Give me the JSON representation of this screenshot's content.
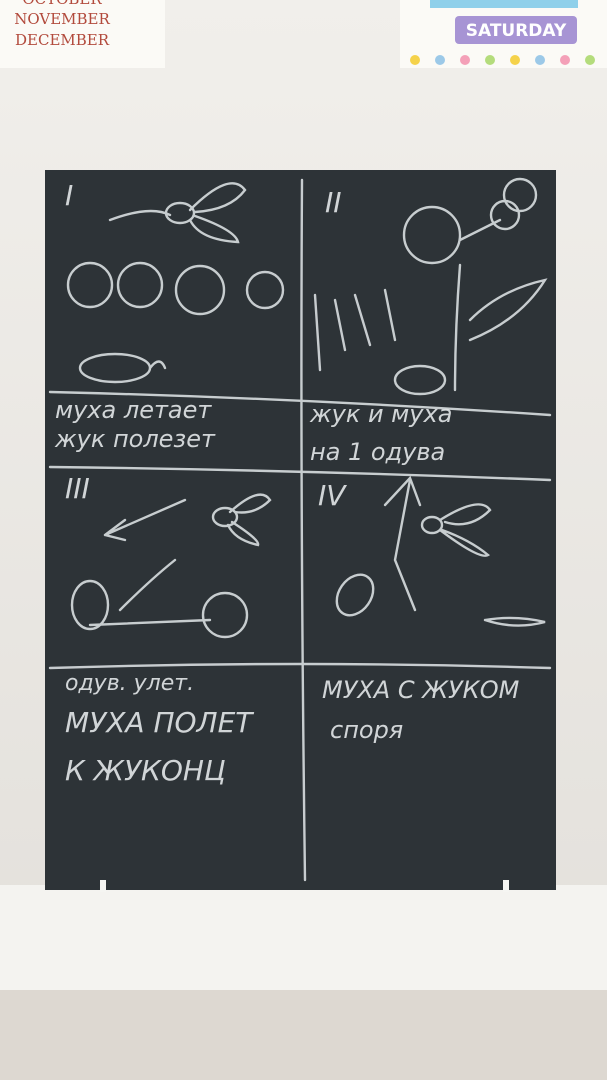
{
  "calendar": {
    "months": [
      "OCTOBER",
      "NOVEMBER",
      "DECEMBER"
    ],
    "day": "SATURDAY"
  },
  "board": {
    "panels": [
      {
        "numeral": "I",
        "caption": [
          "муха летает",
          "жук полезет"
        ]
      },
      {
        "numeral": "II",
        "caption": [
          "жук и муха",
          "на 1 одува"
        ]
      },
      {
        "numeral": "III",
        "caption": [
          "одув. улет.",
          "МУХА ПОЛЕТ",
          "К ЖУКОНЦ"
        ]
      },
      {
        "numeral": "IV",
        "caption": [
          "МУХА С ЖУКОМ",
          "споря"
        ]
      }
    ]
  }
}
